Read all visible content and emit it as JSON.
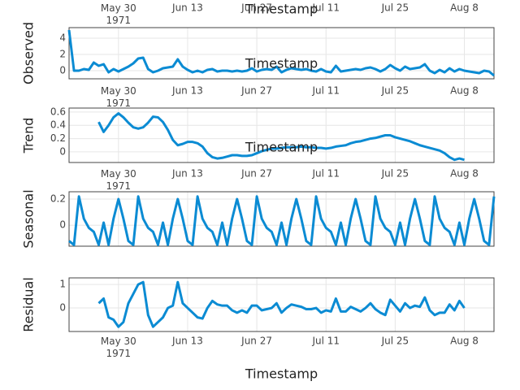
{
  "chart_data": {
    "type": "line",
    "xlabel": "Timestamp",
    "xlim": [
      "1971-05-20",
      "1971-08-14"
    ],
    "xticks": [
      {
        "value": "1971-05-30",
        "label": "May 30\n1971"
      },
      {
        "value": "1971-06-13",
        "label": "Jun 13"
      },
      {
        "value": "1971-06-27",
        "label": "Jun 27"
      },
      {
        "value": "1971-07-11",
        "label": "Jul 11"
      },
      {
        "value": "1971-07-25",
        "label": "Jul 25"
      },
      {
        "value": "1971-08-08",
        "label": "Aug 8"
      }
    ],
    "grid": true,
    "x": [
      "1971-05-20",
      "1971-05-21",
      "1971-05-22",
      "1971-05-23",
      "1971-05-24",
      "1971-05-25",
      "1971-05-26",
      "1971-05-27",
      "1971-05-28",
      "1971-05-29",
      "1971-05-30",
      "1971-05-31",
      "1971-06-01",
      "1971-06-02",
      "1971-06-03",
      "1971-06-04",
      "1971-06-05",
      "1971-06-06",
      "1971-06-07",
      "1971-06-08",
      "1971-06-09",
      "1971-06-10",
      "1971-06-11",
      "1971-06-12",
      "1971-06-13",
      "1971-06-14",
      "1971-06-15",
      "1971-06-16",
      "1971-06-17",
      "1971-06-18",
      "1971-06-19",
      "1971-06-20",
      "1971-06-21",
      "1971-06-22",
      "1971-06-23",
      "1971-06-24",
      "1971-06-25",
      "1971-06-26",
      "1971-06-27",
      "1971-06-28",
      "1971-06-29",
      "1971-06-30",
      "1971-07-01",
      "1971-07-02",
      "1971-07-03",
      "1971-07-04",
      "1971-07-05",
      "1971-07-06",
      "1971-07-07",
      "1971-07-08",
      "1971-07-09",
      "1971-07-10",
      "1971-07-11",
      "1971-07-12",
      "1971-07-13",
      "1971-07-14",
      "1971-07-15",
      "1971-07-16",
      "1971-07-17",
      "1971-07-18",
      "1971-07-19",
      "1971-07-20",
      "1971-07-21",
      "1971-07-22",
      "1971-07-23",
      "1971-07-24",
      "1971-07-25",
      "1971-07-26",
      "1971-07-27",
      "1971-07-28",
      "1971-07-29",
      "1971-07-30",
      "1971-07-31",
      "1971-08-01",
      "1971-08-02",
      "1971-08-03",
      "1971-08-04",
      "1971-08-05",
      "1971-08-06",
      "1971-08-07",
      "1971-08-08",
      "1971-08-09",
      "1971-08-10",
      "1971-08-11",
      "1971-08-12",
      "1971-08-13",
      "1971-08-14"
    ],
    "series": [
      {
        "name": "Observed",
        "color": "#0b8bd3",
        "ylim": [
          -1,
          5.3
        ],
        "yticks": [
          0,
          2,
          4
        ],
        "values": [
          5,
          0,
          0,
          0.2,
          0.1,
          1,
          0.6,
          0.8,
          -0.2,
          0.2,
          -0.1,
          0.2,
          0.5,
          0.9,
          1.5,
          1.6,
          0.2,
          -0.2,
          0,
          0.3,
          0.4,
          0.5,
          1.4,
          0.5,
          0.1,
          -0.2,
          0,
          -0.2,
          0.1,
          0.2,
          -0.1,
          0,
          0,
          -0.1,
          0,
          -0.1,
          0,
          0.3,
          -0.1,
          0.1,
          0.2,
          0.1,
          0.5,
          -0.2,
          0.1,
          0.3,
          0.2,
          0.1,
          0.2,
          0,
          -0.1,
          0.2,
          -0.1,
          -0.2,
          0.6,
          -0.1,
          0,
          0.1,
          0.2,
          0.1,
          0.3,
          0.4,
          0.2,
          -0.1,
          0.2,
          0.7,
          0.3,
          0,
          0.5,
          0.2,
          0.3,
          0.4,
          0.8,
          0,
          -0.3,
          0.1,
          -0.2,
          0.3,
          -0.1,
          0.2,
          0,
          -0.1,
          -0.2,
          -0.3,
          0,
          -0.1,
          -0.6
        ]
      },
      {
        "name": "Trend",
        "color": "#0b8bd3",
        "ylim": [
          -0.16,
          0.66
        ],
        "yticks": [
          0,
          0.2,
          0.4,
          0.6
        ],
        "values": [
          null,
          null,
          null,
          null,
          null,
          null,
          0.45,
          0.3,
          0.4,
          0.52,
          0.58,
          0.52,
          0.44,
          0.37,
          0.35,
          0.37,
          0.44,
          0.53,
          0.52,
          0.45,
          0.33,
          0.18,
          0.1,
          0.12,
          0.15,
          0.15,
          0.13,
          0.08,
          -0.02,
          -0.08,
          -0.1,
          -0.09,
          -0.07,
          -0.05,
          -0.05,
          -0.06,
          -0.06,
          -0.05,
          -0.02,
          0.01,
          0.03,
          0.05,
          0.05,
          0.06,
          0.07,
          0.07,
          0.07,
          0.08,
          0.07,
          0.07,
          0.06,
          0.06,
          0.05,
          0.06,
          0.08,
          0.09,
          0.1,
          0.13,
          0.15,
          0.16,
          0.18,
          0.2,
          0.21,
          0.23,
          0.25,
          0.25,
          0.22,
          0.2,
          0.18,
          0.16,
          0.13,
          0.1,
          0.08,
          0.06,
          0.04,
          0.02,
          -0.02,
          -0.08,
          -0.12,
          -0.1,
          -0.12,
          null,
          null,
          null,
          null,
          null,
          null
        ]
      },
      {
        "name": "Seasonal",
        "color": "#0b8bd3",
        "ylim": [
          -0.16,
          0.256
        ],
        "yticks": [
          0,
          0.2
        ],
        "values": [
          -0.12,
          -0.15,
          0.22,
          0.05,
          -0.02,
          -0.05,
          -0.15,
          0.02,
          -0.15,
          0.05,
          0.2,
          0.05,
          -0.12,
          -0.15,
          0.22,
          0.05,
          -0.02,
          -0.05,
          -0.15,
          0.02,
          -0.15,
          0.05,
          0.2,
          0.05,
          -0.12,
          -0.15,
          0.22,
          0.05,
          -0.02,
          -0.05,
          -0.15,
          0.02,
          -0.15,
          0.05,
          0.2,
          0.05,
          -0.12,
          -0.15,
          0.22,
          0.05,
          -0.02,
          -0.05,
          -0.15,
          0.02,
          -0.15,
          0.05,
          0.2,
          0.05,
          -0.12,
          -0.15,
          0.22,
          0.05,
          -0.02,
          -0.05,
          -0.15,
          0.02,
          -0.15,
          0.05,
          0.2,
          0.05,
          -0.12,
          -0.15,
          0.22,
          0.05,
          -0.02,
          -0.05,
          -0.15,
          0.02,
          -0.15,
          0.05,
          0.2,
          0.05,
          -0.12,
          -0.15,
          0.22,
          0.05,
          -0.02,
          -0.05,
          -0.15,
          0.02,
          -0.15,
          0.05,
          0.2,
          0.05,
          -0.12,
          -0.15,
          0.22
        ]
      },
      {
        "name": "Residual",
        "color": "#0b8bd3",
        "ylim": [
          -1,
          1.28
        ],
        "yticks": [
          0,
          1
        ],
        "values": [
          null,
          null,
          null,
          null,
          null,
          null,
          0.2,
          0.4,
          -0.4,
          -0.5,
          -0.8,
          -0.6,
          0.2,
          0.6,
          1,
          1.1,
          -0.3,
          -0.8,
          -0.6,
          -0.4,
          0,
          0.1,
          1.1,
          0.2,
          0,
          -0.2,
          -0.4,
          -0.45,
          0,
          0.3,
          0.15,
          0.1,
          0.1,
          -0.1,
          -0.2,
          -0.1,
          -0.2,
          0.1,
          0.1,
          -0.1,
          -0.05,
          0,
          0.2,
          -0.2,
          0,
          0.15,
          0.1,
          0.05,
          -0.05,
          -0.05,
          0,
          -0.2,
          -0.1,
          -0.15,
          0.4,
          -0.15,
          -0.15,
          0.05,
          -0.05,
          -0.15,
          0,
          0.2,
          -0.05,
          -0.2,
          -0.3,
          0.35,
          0.1,
          -0.15,
          0.2,
          0,
          0.1,
          0.05,
          0.45,
          -0.1,
          -0.3,
          -0.2,
          -0.2,
          0.15,
          -0.1,
          0.3,
          0,
          null,
          null,
          null,
          null,
          null,
          null
        ]
      }
    ]
  }
}
